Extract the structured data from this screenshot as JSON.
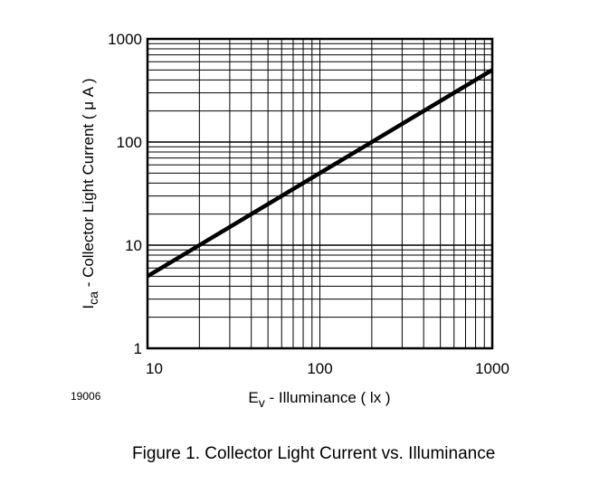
{
  "figure_id": "19006",
  "caption": "Figure 1. Collector Light Current vs. Illuminance",
  "chart_data": {
    "type": "line",
    "x_scale": "log",
    "y_scale": "log",
    "xlim": [
      10,
      1000
    ],
    "ylim": [
      1,
      1000
    ],
    "grid": true,
    "x_ticks": [
      10,
      100,
      1000
    ],
    "x_tick_labels": [
      "10",
      "100",
      "1000"
    ],
    "y_ticks": [
      1,
      10,
      100,
      1000
    ],
    "y_tick_labels": [
      "1",
      "10",
      "100",
      "1000"
    ],
    "xlabel": {
      "main": "E",
      "sub": "v",
      "rest": " - Illuminance ( lx )"
    },
    "ylabel": {
      "main": "I",
      "sub": "ca",
      "rest": " - Collector Light Current ( μ A )"
    },
    "series": [
      {
        "x": [
          10,
          20,
          40,
          100,
          200,
          400,
          1000
        ],
        "y": [
          5,
          10,
          20,
          50,
          100,
          200,
          500
        ]
      }
    ],
    "colors": {
      "line": "#000000",
      "grid": "#000000"
    }
  }
}
